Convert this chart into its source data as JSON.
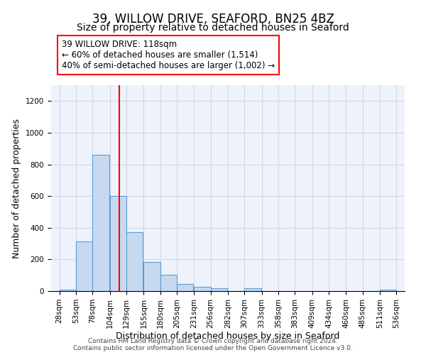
{
  "title": "39, WILLOW DRIVE, SEAFORD, BN25 4BZ",
  "subtitle": "Size of property relative to detached houses in Seaford",
  "xlabel": "Distribution of detached houses by size in Seaford",
  "ylabel": "Number of detached properties",
  "bin_edges": [
    28,
    53,
    78,
    104,
    129,
    155,
    180,
    205,
    231,
    256,
    282,
    307,
    333,
    358,
    383,
    409,
    434,
    460,
    485,
    511,
    536
  ],
  "bar_heights": [
    10,
    315,
    860,
    600,
    370,
    185,
    105,
    45,
    25,
    20,
    0,
    20,
    0,
    0,
    0,
    0,
    0,
    0,
    0,
    10
  ],
  "bar_color": "#c7d9f0",
  "bar_edge_color": "#5b9bd5",
  "grid_color": "#d0d8e8",
  "bg_color": "#eef2fa",
  "red_line_x": 118,
  "annotation_lines": [
    "39 WILLOW DRIVE: 118sqm",
    "← 60% of detached houses are smaller (1,514)",
    "40% of semi-detached houses are larger (1,002) →"
  ],
  "ylim": [
    0,
    1300
  ],
  "yticks": [
    0,
    200,
    400,
    600,
    800,
    1000,
    1200
  ],
  "footer1": "Contains HM Land Registry data © Crown copyright and database right 2024.",
  "footer2": "Contains public sector information licensed under the Open Government Licence v3.0.",
  "title_fontsize": 12,
  "subtitle_fontsize": 10,
  "xlabel_fontsize": 9,
  "ylabel_fontsize": 9,
  "tick_fontsize": 7.5,
  "annotation_fontsize": 8.5,
  "footer_fontsize": 6.5
}
